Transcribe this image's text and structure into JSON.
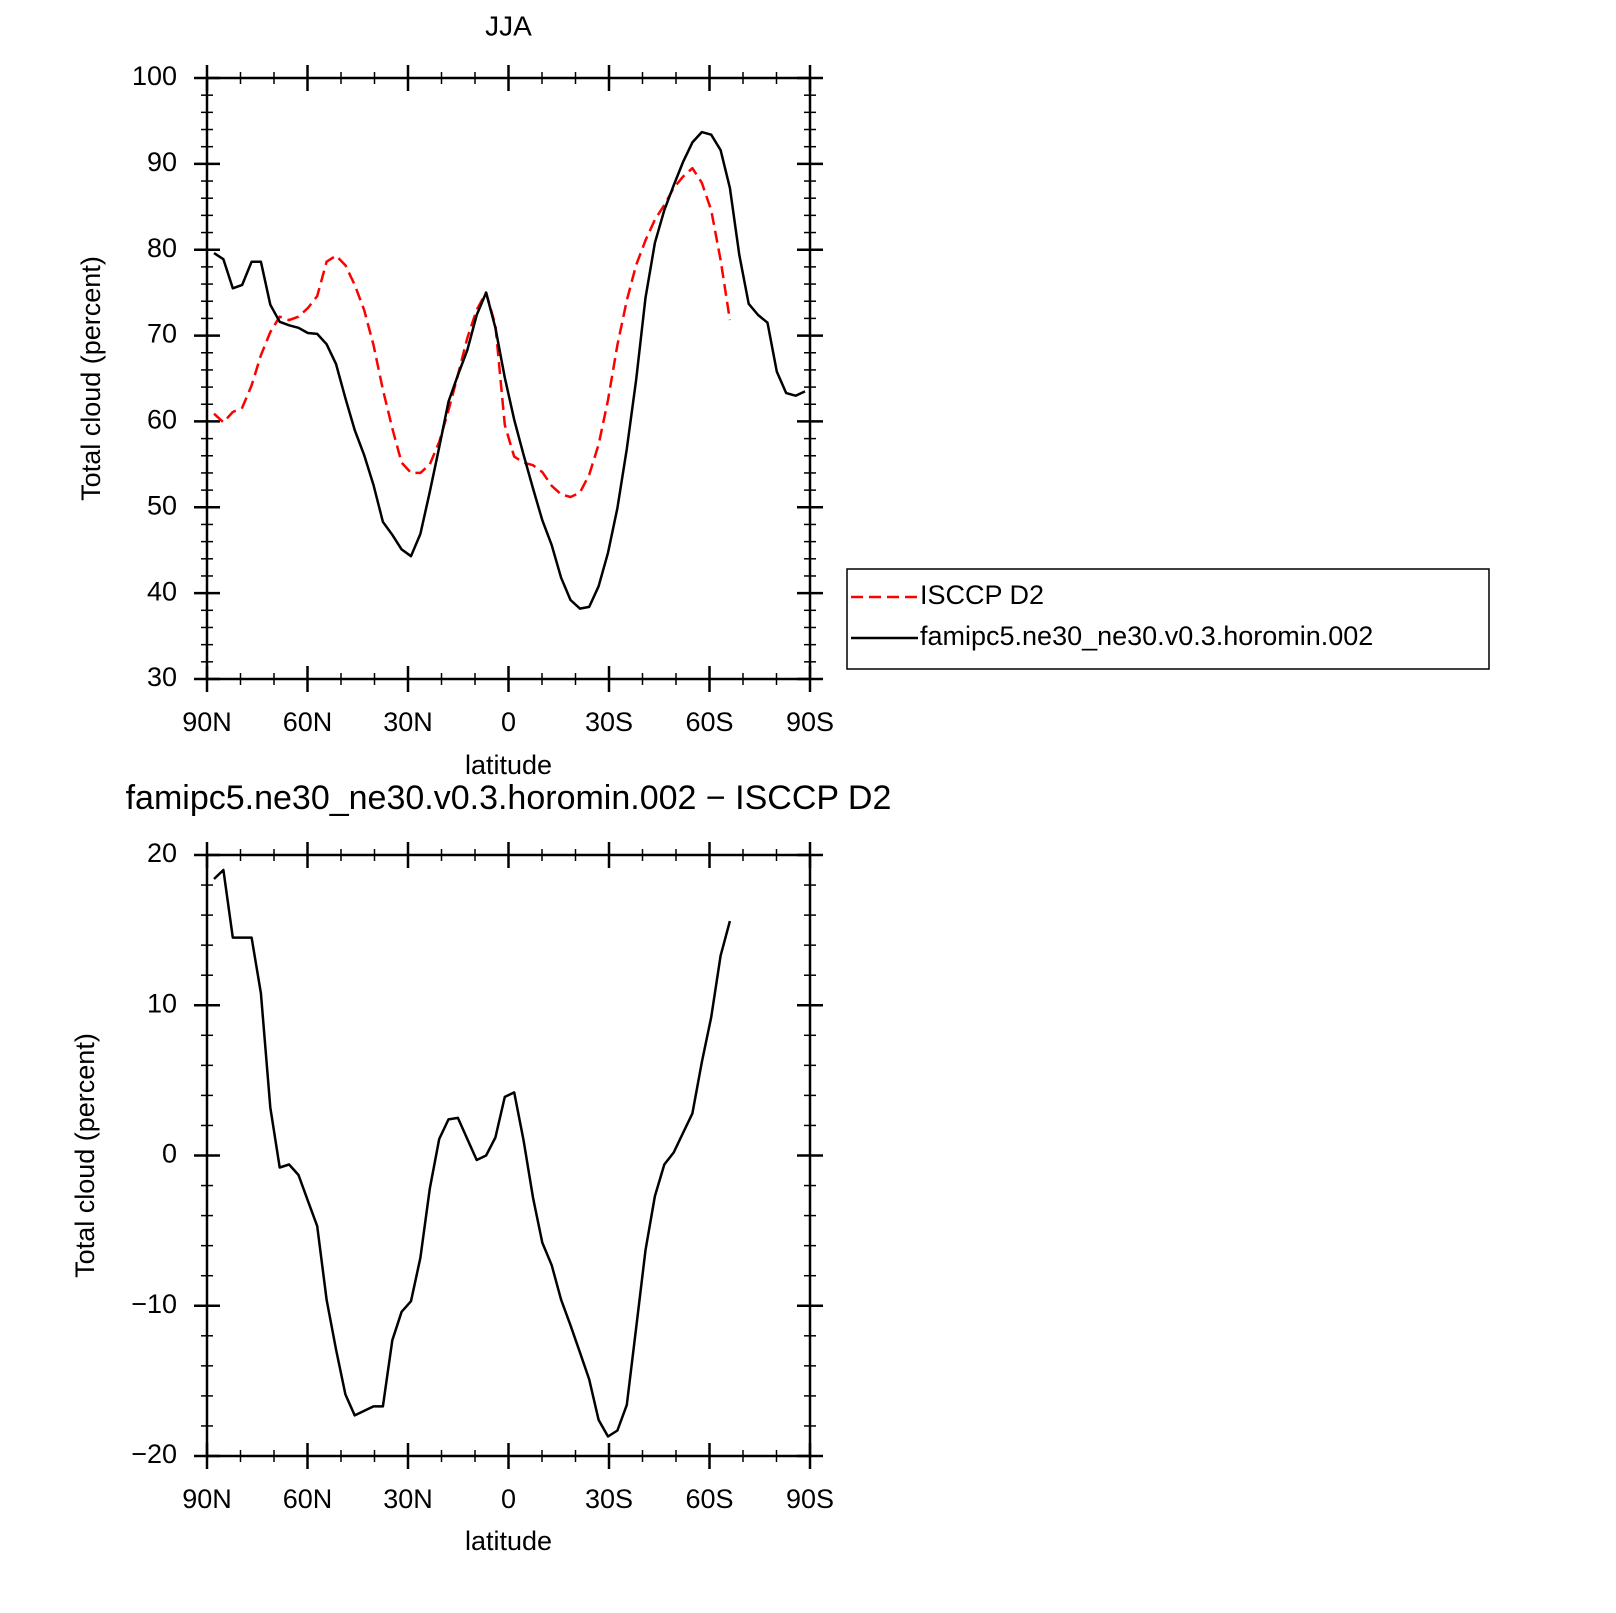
{
  "chart_data": [
    {
      "type": "line",
      "title": "JJA",
      "xlabel": "latitude",
      "ylabel": "Total cloud (percent)",
      "x": [
        87.9,
        85.1,
        82.3,
        79.5,
        76.7,
        73.9,
        71.1,
        68.3,
        65.5,
        62.7,
        59.9,
        57.1,
        54.3,
        51.5,
        48.7,
        45.9,
        43.1,
        40.3,
        37.5,
        34.7,
        31.9,
        29.1,
        26.3,
        23.5,
        20.7,
        17.9,
        15.1,
        12.3,
        9.5,
        6.7,
        3.9,
        1.1,
        -1.7,
        -4.5,
        -7.3,
        -10.1,
        -12.9,
        -15.7,
        -18.5,
        -21.3,
        -24.1,
        -26.9,
        -29.7,
        -32.5,
        -35.3,
        -38.1,
        -40.9,
        -43.7,
        -46.5,
        -49.3,
        -52.1,
        -54.9,
        -57.7,
        -60.5,
        -63.3,
        -66.1,
        -68.9,
        -71.7,
        -74.5,
        -77.3,
        -80.1,
        -82.9,
        -85.7,
        -88.5
      ],
      "xlim": [
        90,
        -90
      ],
      "xticks": [
        {
          "value": 90,
          "label": "90N"
        },
        {
          "value": 60,
          "label": "60N"
        },
        {
          "value": 30,
          "label": "30N"
        },
        0,
        {
          "value": -30,
          "label": "30S"
        },
        {
          "value": -60,
          "label": "60S"
        },
        {
          "value": -90,
          "label": "90S"
        }
      ],
      "ylim": [
        30,
        100
      ],
      "yticks": [
        30,
        40,
        50,
        60,
        70,
        80,
        90,
        100
      ],
      "legend": "right",
      "series": [
        {
          "name": "ISCCP D2",
          "color": "#ff0000",
          "linestyle": "dashed",
          "values": [
            60.9,
            59.9,
            61.1,
            61.6,
            64.2,
            67.7,
            70.4,
            72.2,
            71.8,
            72.2,
            73.2,
            74.6,
            78.6,
            79.3,
            78.2,
            75.9,
            73.0,
            68.9,
            63.7,
            59.2,
            55.2,
            54.0,
            54.0,
            55.0,
            57.6,
            61.3,
            65.4,
            69.7,
            73.0,
            75.0,
            71.2,
            59.6,
            55.9,
            55.2,
            54.9,
            54.1,
            52.5,
            51.5,
            51.2,
            51.7,
            53.8,
            57.3,
            62.5,
            68.9,
            74.1,
            78.2,
            81.1,
            83.5,
            85.2,
            87.2,
            88.5,
            89.5,
            87.8,
            84.6,
            78.8,
            71.8,
            null,
            null,
            null,
            null,
            null,
            null,
            null,
            null
          ]
        },
        {
          "name": "famipc5.ne30_ne30.v0.3.horomin.002",
          "color": "#000000",
          "linestyle": "solid",
          "values": [
            79.6,
            78.9,
            75.5,
            75.9,
            78.6,
            78.6,
            73.6,
            71.6,
            71.2,
            70.9,
            70.3,
            70.2,
            69.0,
            66.7,
            62.7,
            59.0,
            56.1,
            52.6,
            48.3,
            46.8,
            45.1,
            44.3,
            46.9,
            51.8,
            57.0,
            62.3,
            65.4,
            68.3,
            72.4,
            75.0,
            70.9,
            65.1,
            60.2,
            56.1,
            52.2,
            48.5,
            45.6,
            41.8,
            39.2,
            38.2,
            38.4,
            40.8,
            44.7,
            49.9,
            56.8,
            64.8,
            74.4,
            80.8,
            84.6,
            87.5,
            90.2,
            92.5,
            93.7,
            93.4,
            91.6,
            87.2,
            79.4,
            73.7,
            72.4,
            71.5,
            65.8,
            63.3,
            63.0,
            63.5
          ]
        }
      ]
    },
    {
      "type": "line",
      "title": "famipc5.ne30_ne30.v0.3.horomin.002 − ISCCP D2",
      "xlabel": "latitude",
      "ylabel": "Total cloud (percent)",
      "x": [
        87.9,
        85.1,
        82.3,
        79.5,
        76.7,
        73.9,
        71.1,
        68.3,
        65.5,
        62.7,
        59.9,
        57.1,
        54.3,
        51.5,
        48.7,
        45.9,
        43.1,
        40.3,
        37.5,
        34.7,
        31.9,
        29.1,
        26.3,
        23.5,
        20.7,
        17.9,
        15.1,
        12.3,
        9.5,
        6.7,
        3.9,
        1.1,
        -1.7,
        -4.5,
        -7.3,
        -10.1,
        -12.9,
        -15.7,
        -18.5,
        -21.3,
        -24.1,
        -26.9,
        -29.7,
        -32.5,
        -35.3,
        -38.1,
        -40.9,
        -43.7,
        -46.5,
        -49.3,
        -52.1,
        -54.9,
        -57.7,
        -60.5,
        -63.3,
        -66.1,
        -68.9,
        -71.7,
        -74.5,
        -77.3,
        -80.1,
        -82.9,
        -85.7,
        -88.5
      ],
      "xlim": [
        90,
        -90
      ],
      "xticks": [
        {
          "value": 90,
          "label": "90N"
        },
        {
          "value": 60,
          "label": "60N"
        },
        {
          "value": 30,
          "label": "30N"
        },
        0,
        {
          "value": -30,
          "label": "30S"
        },
        {
          "value": -60,
          "label": "60S"
        },
        {
          "value": -90,
          "label": "90S"
        }
      ],
      "ylim": [
        -20,
        20
      ],
      "yticks": [
        {
          "value": -20,
          "label": "−20"
        },
        {
          "value": -10,
          "label": "−10"
        },
        0,
        10,
        20
      ],
      "series": [
        {
          "color": "#000000",
          "linestyle": "solid",
          "values": [
            18.4,
            19.0,
            14.5,
            14.5,
            14.5,
            10.8,
            3.2,
            -0.8,
            -0.6,
            -1.3,
            -3.0,
            -4.7,
            -9.6,
            -12.9,
            -15.9,
            -17.3,
            -17.0,
            -16.7,
            -16.7,
            -12.3,
            -10.4,
            -9.7,
            -6.8,
            -2.2,
            1.1,
            2.4,
            2.5,
            1.1,
            -0.3,
            0.0,
            1.2,
            3.9,
            4.2,
            1.0,
            -2.8,
            -5.8,
            -7.3,
            -9.6,
            -11.3,
            -13.1,
            -14.9,
            -17.6,
            -18.7,
            -18.3,
            -16.6,
            -11.5,
            -6.3,
            -2.7,
            -0.6,
            0.2,
            1.5,
            2.8,
            6.2,
            9.2,
            13.3,
            15.6,
            null,
            null,
            null,
            null,
            null,
            null,
            null,
            null
          ]
        }
      ]
    }
  ]
}
